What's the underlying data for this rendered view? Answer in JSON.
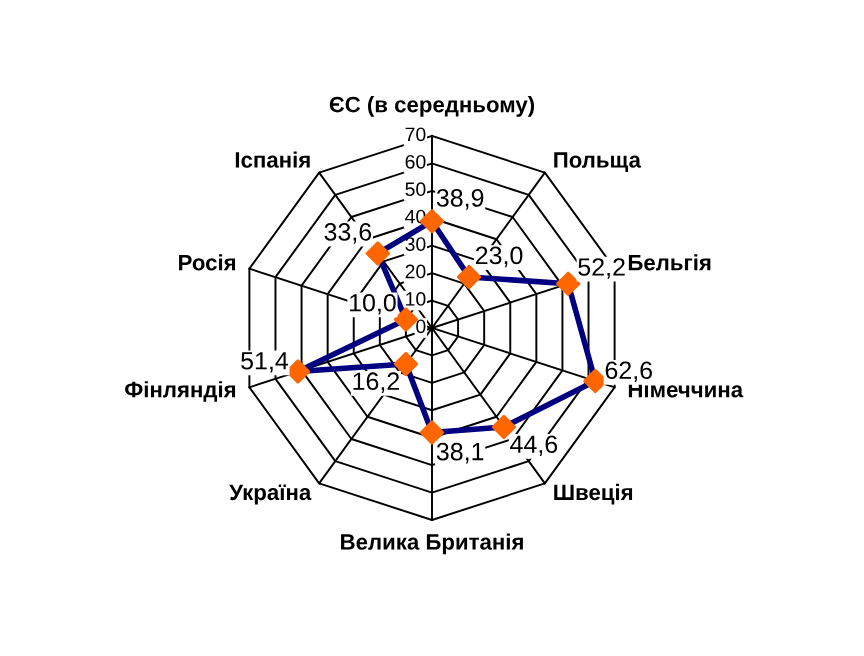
{
  "chart_data": {
    "type": "radar",
    "categories": [
      "ЄС (в середньому)",
      "Польща",
      "Бельгія",
      "Німеччина",
      "Швеція",
      "Велика Британія",
      "Україна",
      "Фінляндія",
      "Росія",
      "Іспанія"
    ],
    "series": [
      {
        "color": "#000080",
        "colors": [
          "#ff6600",
          "#ff6600",
          "#ff6600",
          "#ff6600",
          "#ff6600",
          "#ff6600",
          "#ff6600",
          "#ff6600",
          "#ff6600",
          "#ff6600"
        ],
        "values": [
          38.9,
          23.0,
          52.2,
          62.6,
          44.6,
          38.1,
          16.2,
          51.4,
          10.0,
          33.6
        ],
        "value_labels": [
          "38,9",
          "23,0",
          "52,2",
          "62,6",
          "44,6",
          "38,1",
          "16,2",
          "51,4",
          "10,0",
          "33,6"
        ]
      }
    ],
    "ylim": [
      0,
      70
    ],
    "yticks": [
      0,
      10,
      20,
      30,
      40,
      50,
      60,
      70
    ],
    "grid": true,
    "marker": "diamond",
    "line_style": "solid",
    "legend": false
  }
}
